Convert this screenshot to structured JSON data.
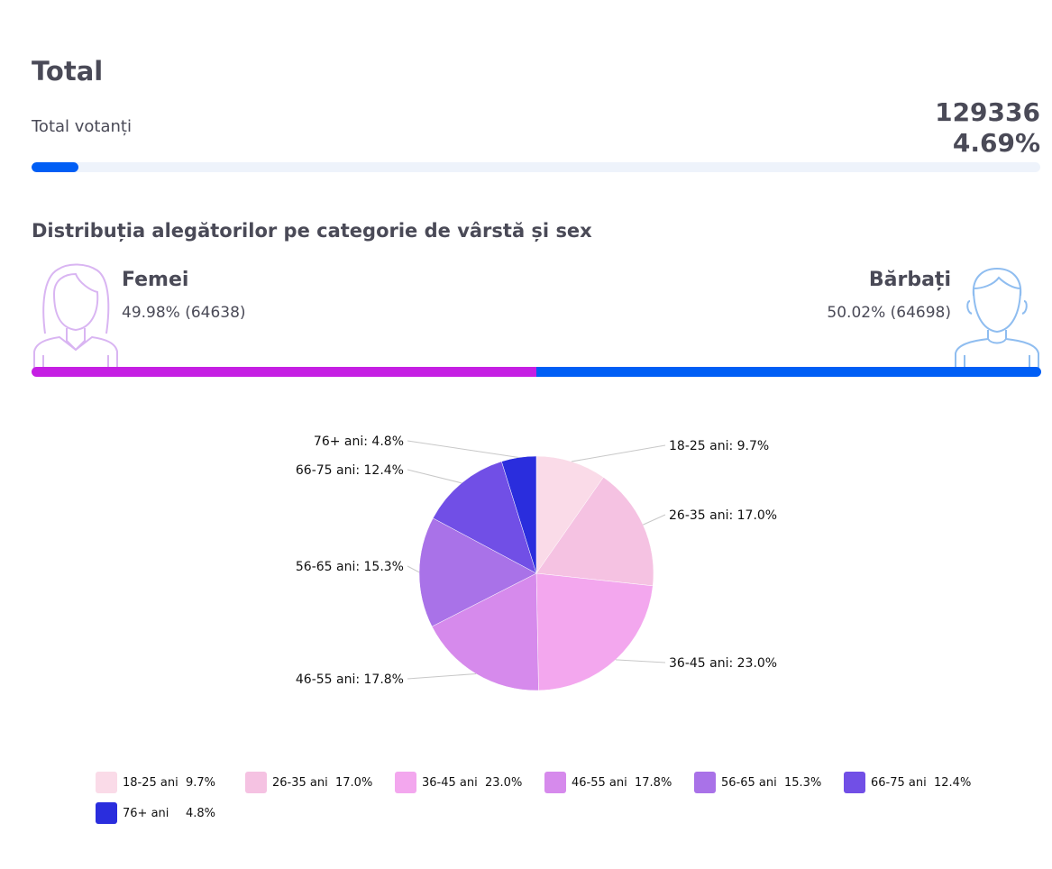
{
  "header": {
    "title": "Total",
    "subtitle": "Total votanți",
    "total_count": "129336",
    "total_percent": "4.69%",
    "progress_fraction": 0.0469
  },
  "gender": {
    "section_title": "Distribuția alegătorilor pe categorie de vârstă și sex",
    "female": {
      "label": "Femei",
      "value": "49.98% (64638)",
      "fraction": 0.4998,
      "color": "#c51fe3",
      "icon": "female-avatar-icon"
    },
    "male": {
      "label": "Bărbați",
      "value": "50.02% (64698)",
      "fraction": 0.5002,
      "color": "#005ef5",
      "icon": "male-avatar-icon"
    }
  },
  "chart_data": {
    "type": "pie",
    "title": "",
    "categories": [
      "18-25 ani",
      "26-35 ani",
      "36-45 ani",
      "46-55 ani",
      "56-65 ani",
      "66-75 ani",
      "76+ ani"
    ],
    "values": [
      9.7,
      17.0,
      23.0,
      17.8,
      15.3,
      12.4,
      4.8
    ],
    "labels": [
      "18-25 ani: 9.7%",
      "26-35 ani: 17.0%",
      "36-45 ani: 23.0%",
      "46-55 ani: 17.8%",
      "56-65 ani: 15.3%",
      "66-75 ani: 12.4%",
      "76+ ani: 4.8%"
    ],
    "legend_values": [
      "9.7%",
      "17.0%",
      "23.0%",
      "17.8%",
      "15.3%",
      "12.4%",
      "4.8%"
    ],
    "colors": [
      "#fadbe8",
      "#f5c2e2",
      "#f3a7ee",
      "#d68aec",
      "#a972e8",
      "#714fe6",
      "#2a2ddd"
    ],
    "legend_position": "bottom"
  }
}
